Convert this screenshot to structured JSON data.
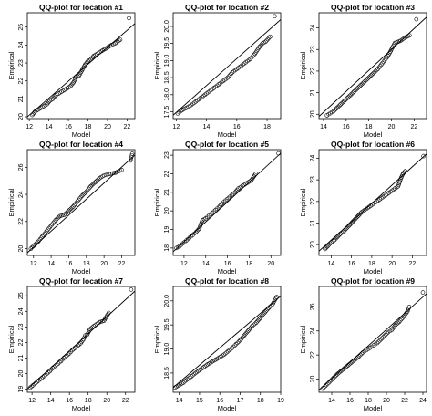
{
  "chart_data": [
    {
      "type": "scatter",
      "title": "QQ-plot for location #1",
      "xlabel": "Model",
      "ylabel": "Empirical",
      "xticks": [
        12,
        14,
        16,
        18,
        20,
        22
      ],
      "yticks": [
        20,
        21,
        22,
        23,
        24,
        25
      ],
      "xlim": [
        11.8,
        22.8
      ],
      "ylim": [
        19.9,
        25.8
      ],
      "reference_line": [
        [
          11.8,
          20.0
        ],
        [
          22.8,
          25.2
        ]
      ],
      "points": [
        [
          12.3,
          20.1
        ],
        [
          12.6,
          20.3
        ],
        [
          12.9,
          20.4
        ],
        [
          13.2,
          20.5
        ],
        [
          13.5,
          20.6
        ],
        [
          13.8,
          20.7
        ],
        [
          14.1,
          20.9
        ],
        [
          14.4,
          21.0
        ],
        [
          14.7,
          21.2
        ],
        [
          15.0,
          21.3
        ],
        [
          15.3,
          21.4
        ],
        [
          15.6,
          21.5
        ],
        [
          15.9,
          21.6
        ],
        [
          16.2,
          21.7
        ],
        [
          16.5,
          21.9
        ],
        [
          16.8,
          22.2
        ],
        [
          17.1,
          22.3
        ],
        [
          17.4,
          22.6
        ],
        [
          17.7,
          22.9
        ],
        [
          18.0,
          23.1
        ],
        [
          18.3,
          23.2
        ],
        [
          18.6,
          23.4
        ],
        [
          18.9,
          23.5
        ],
        [
          19.2,
          23.6
        ],
        [
          19.5,
          23.7
        ],
        [
          19.8,
          23.8
        ],
        [
          20.1,
          23.9
        ],
        [
          20.4,
          24.0
        ],
        [
          20.8,
          24.1
        ],
        [
          21.3,
          24.3
        ],
        [
          22.2,
          25.5
        ]
      ]
    },
    {
      "type": "scatter",
      "title": "QQ-plot for location #2",
      "xlabel": "Model",
      "ylabel": "Empirical",
      "xticks": [
        12,
        14,
        16,
        18
      ],
      "yticks": [
        17.5,
        18.0,
        18.5,
        19.0,
        19.5,
        20.0
      ],
      "xlim": [
        11.8,
        18.9
      ],
      "ylim": [
        17.3,
        20.4
      ],
      "reference_line": [
        [
          11.8,
          17.4
        ],
        [
          18.9,
          20.2
        ]
      ],
      "points": [
        [
          12.1,
          17.45
        ],
        [
          12.4,
          17.55
        ],
        [
          12.7,
          17.62
        ],
        [
          13.0,
          17.7
        ],
        [
          13.3,
          17.8
        ],
        [
          13.6,
          17.9
        ],
        [
          13.9,
          18.0
        ],
        [
          14.2,
          18.1
        ],
        [
          14.5,
          18.2
        ],
        [
          14.8,
          18.3
        ],
        [
          15.1,
          18.4
        ],
        [
          15.4,
          18.5
        ],
        [
          15.7,
          18.65
        ],
        [
          16.0,
          18.75
        ],
        [
          16.3,
          18.85
        ],
        [
          16.6,
          18.95
        ],
        [
          16.9,
          19.05
        ],
        [
          17.2,
          19.2
        ],
        [
          17.5,
          19.4
        ],
        [
          17.7,
          19.5
        ],
        [
          17.9,
          19.55
        ],
        [
          18.2,
          19.7
        ],
        [
          18.5,
          20.3
        ]
      ]
    },
    {
      "type": "scatter",
      "title": "QQ-plot for location #3",
      "xlabel": "Model",
      "ylabel": "Empirical",
      "xticks": [
        14,
        16,
        18,
        20,
        22
      ],
      "yticks": [
        20,
        21,
        22,
        23,
        24
      ],
      "xlim": [
        13.6,
        23.1
      ],
      "ylim": [
        19.8,
        24.7
      ],
      "reference_line": [
        [
          13.6,
          19.9
        ],
        [
          23.1,
          24.5
        ]
      ],
      "points": [
        [
          14.3,
          19.95
        ],
        [
          14.6,
          20.05
        ],
        [
          14.9,
          20.15
        ],
        [
          15.2,
          20.3
        ],
        [
          15.5,
          20.45
        ],
        [
          15.8,
          20.6
        ],
        [
          16.1,
          20.75
        ],
        [
          16.4,
          20.9
        ],
        [
          16.7,
          21.05
        ],
        [
          17.0,
          21.2
        ],
        [
          17.3,
          21.35
        ],
        [
          17.6,
          21.5
        ],
        [
          17.9,
          21.65
        ],
        [
          18.2,
          21.8
        ],
        [
          18.5,
          21.95
        ],
        [
          18.8,
          22.1
        ],
        [
          19.1,
          22.3
        ],
        [
          19.4,
          22.5
        ],
        [
          19.7,
          22.7
        ],
        [
          19.9,
          22.9
        ],
        [
          20.1,
          23.1
        ],
        [
          20.3,
          23.3
        ],
        [
          20.8,
          23.4
        ],
        [
          21.2,
          23.55
        ],
        [
          21.6,
          23.65
        ],
        [
          22.2,
          24.4
        ]
      ]
    },
    {
      "type": "scatter",
      "title": "QQ-plot for location #4",
      "xlabel": "Model",
      "ylabel": "Empirical",
      "xticks": [
        12,
        14,
        16,
        18,
        20,
        22
      ],
      "yticks": [
        20,
        22,
        24,
        26
      ],
      "xlim": [
        11.3,
        23.5
      ],
      "ylim": [
        19.5,
        27.3
      ],
      "reference_line": [
        [
          11.3,
          19.7
        ],
        [
          23.5,
          26.9
        ]
      ],
      "points": [
        [
          11.7,
          20.0
        ],
        [
          12.0,
          20.2
        ],
        [
          12.5,
          20.5
        ],
        [
          13.0,
          20.9
        ],
        [
          13.5,
          21.3
        ],
        [
          14.0,
          21.7
        ],
        [
          14.5,
          22.1
        ],
        [
          15.0,
          22.4
        ],
        [
          15.5,
          22.5
        ],
        [
          16.0,
          22.8
        ],
        [
          16.5,
          23.1
        ],
        [
          17.0,
          23.5
        ],
        [
          17.5,
          23.9
        ],
        [
          18.0,
          24.2
        ],
        [
          18.5,
          24.6
        ],
        [
          19.0,
          24.9
        ],
        [
          19.5,
          25.2
        ],
        [
          20.0,
          25.4
        ],
        [
          20.6,
          25.5
        ],
        [
          21.3,
          25.6
        ],
        [
          22.0,
          25.8
        ],
        [
          23.0,
          26.5
        ],
        [
          23.2,
          27.0
        ]
      ]
    },
    {
      "type": "scatter",
      "title": "QQ-plot for location #5",
      "xlabel": "Model",
      "ylabel": "Empirical",
      "xticks": [
        12,
        14,
        16,
        18,
        20
      ],
      "yticks": [
        18,
        19,
        20,
        21,
        22,
        23
      ],
      "xlim": [
        11.0,
        20.9
      ],
      "ylim": [
        17.6,
        23.3
      ],
      "reference_line": [
        [
          11.0,
          17.8
        ],
        [
          20.9,
          23.1
        ]
      ],
      "points": [
        [
          11.3,
          18.0
        ],
        [
          11.6,
          18.1
        ],
        [
          11.9,
          18.25
        ],
        [
          12.2,
          18.4
        ],
        [
          12.5,
          18.55
        ],
        [
          12.8,
          18.7
        ],
        [
          13.1,
          18.85
        ],
        [
          13.4,
          19.05
        ],
        [
          13.7,
          19.5
        ],
        [
          14.0,
          19.6
        ],
        [
          14.3,
          19.75
        ],
        [
          14.6,
          19.9
        ],
        [
          14.9,
          20.05
        ],
        [
          15.2,
          20.2
        ],
        [
          15.5,
          20.4
        ],
        [
          15.8,
          20.55
        ],
        [
          16.1,
          20.7
        ],
        [
          16.4,
          20.85
        ],
        [
          16.7,
          21.0
        ],
        [
          17.0,
          21.2
        ],
        [
          17.4,
          21.35
        ],
        [
          17.8,
          21.5
        ],
        [
          18.2,
          21.65
        ],
        [
          18.6,
          22.0
        ],
        [
          20.7,
          23.1
        ]
      ]
    },
    {
      "type": "scatter",
      "title": "QQ-plot for location #6",
      "xlabel": "Model",
      "ylabel": "Empirical",
      "xticks": [
        14,
        16,
        18,
        20,
        22
      ],
      "yticks": [
        20,
        21,
        22,
        23,
        24
      ],
      "xlim": [
        12.8,
        23.4
      ],
      "ylim": [
        19.5,
        24.4
      ],
      "reference_line": [
        [
          12.8,
          19.7
        ],
        [
          23.4,
          24.2
        ]
      ],
      "points": [
        [
          13.4,
          19.8
        ],
        [
          13.7,
          19.95
        ],
        [
          14.0,
          20.1
        ],
        [
          14.3,
          20.2
        ],
        [
          14.6,
          20.35
        ],
        [
          14.9,
          20.5
        ],
        [
          15.2,
          20.6
        ],
        [
          15.5,
          20.75
        ],
        [
          15.8,
          20.9
        ],
        [
          16.1,
          21.05
        ],
        [
          16.4,
          21.2
        ],
        [
          16.7,
          21.35
        ],
        [
          17.0,
          21.5
        ],
        [
          17.3,
          21.6
        ],
        [
          17.6,
          21.7
        ],
        [
          17.9,
          21.8
        ],
        [
          18.2,
          21.9
        ],
        [
          18.5,
          22.0
        ],
        [
          18.8,
          22.1
        ],
        [
          19.1,
          22.2
        ],
        [
          19.4,
          22.3
        ],
        [
          19.7,
          22.4
        ],
        [
          20.0,
          22.5
        ],
        [
          20.3,
          22.6
        ],
        [
          20.6,
          22.7
        ],
        [
          20.9,
          23.1
        ],
        [
          21.1,
          23.3
        ],
        [
          21.3,
          23.4
        ],
        [
          23.1,
          24.1
        ]
      ]
    },
    {
      "type": "scatter",
      "title": "QQ-plot for location #7",
      "xlabel": "Model",
      "ylabel": "Empirical",
      "xticks": [
        12,
        14,
        16,
        18,
        20,
        22
      ],
      "yticks": [
        19,
        20,
        21,
        22,
        23,
        24,
        25
      ],
      "xlim": [
        11.5,
        23.0
      ],
      "ylim": [
        18.8,
        25.6
      ],
      "reference_line": [
        [
          11.5,
          19.0
        ],
        [
          23.0,
          25.3
        ]
      ],
      "points": [
        [
          11.8,
          19.1
        ],
        [
          12.1,
          19.25
        ],
        [
          12.4,
          19.4
        ],
        [
          12.7,
          19.55
        ],
        [
          13.0,
          19.7
        ],
        [
          13.3,
          19.85
        ],
        [
          13.6,
          20.0
        ],
        [
          13.9,
          20.15
        ],
        [
          14.2,
          20.35
        ],
        [
          14.5,
          20.5
        ],
        [
          14.8,
          20.65
        ],
        [
          15.1,
          20.8
        ],
        [
          15.4,
          21.0
        ],
        [
          15.7,
          21.15
        ],
        [
          16.0,
          21.3
        ],
        [
          16.3,
          21.5
        ],
        [
          16.6,
          21.65
        ],
        [
          16.9,
          21.8
        ],
        [
          17.2,
          21.95
        ],
        [
          17.5,
          22.2
        ],
        [
          17.7,
          22.45
        ],
        [
          17.9,
          22.5
        ],
        [
          18.2,
          22.85
        ],
        [
          18.6,
          23.05
        ],
        [
          19.2,
          23.3
        ],
        [
          19.7,
          23.4
        ],
        [
          20.2,
          23.9
        ],
        [
          22.6,
          25.4
        ]
      ]
    },
    {
      "type": "scatter",
      "title": "QQ-plot for location #8",
      "xlabel": "Model",
      "ylabel": "Empirical",
      "xticks": [
        14,
        15,
        16,
        17,
        18,
        19
      ],
      "yticks": [
        18.5,
        19.0,
        19.5,
        20.0
      ],
      "xlim": [
        13.7,
        19.0
      ],
      "ylim": [
        18.1,
        20.3
      ],
      "reference_line": [
        [
          13.7,
          18.2
        ],
        [
          19.0,
          20.1
        ]
      ],
      "points": [
        [
          13.8,
          18.2
        ],
        [
          14.0,
          18.25
        ],
        [
          14.2,
          18.3
        ],
        [
          14.4,
          18.37
        ],
        [
          14.6,
          18.43
        ],
        [
          14.8,
          18.5
        ],
        [
          15.0,
          18.56
        ],
        [
          15.2,
          18.62
        ],
        [
          15.4,
          18.68
        ],
        [
          15.6,
          18.73
        ],
        [
          15.8,
          18.78
        ],
        [
          16.0,
          18.83
        ],
        [
          16.2,
          18.88
        ],
        [
          16.4,
          18.95
        ],
        [
          16.6,
          19.02
        ],
        [
          16.8,
          19.1
        ],
        [
          17.0,
          19.18
        ],
        [
          17.2,
          19.28
        ],
        [
          17.4,
          19.38
        ],
        [
          17.6,
          19.48
        ],
        [
          17.8,
          19.55
        ],
        [
          18.0,
          19.65
        ],
        [
          18.2,
          19.75
        ],
        [
          18.4,
          19.85
        ],
        [
          18.6,
          19.93
        ],
        [
          18.8,
          20.08
        ]
      ]
    },
    {
      "type": "scatter",
      "title": "QQ-plot for location #9",
      "xlabel": "Model",
      "ylabel": "Empirical",
      "xticks": [
        14,
        16,
        18,
        20,
        22,
        24
      ],
      "yticks": [
        20,
        22,
        24,
        26
      ],
      "xlim": [
        12.6,
        24.4
      ],
      "ylim": [
        18.9,
        27.7
      ],
      "reference_line": [
        [
          12.6,
          19.1
        ],
        [
          24.4,
          27.1
        ]
      ],
      "points": [
        [
          13.0,
          19.2
        ],
        [
          13.4,
          19.5
        ],
        [
          13.8,
          19.8
        ],
        [
          14.2,
          20.1
        ],
        [
          14.6,
          20.4
        ],
        [
          15.0,
          20.65
        ],
        [
          15.4,
          20.9
        ],
        [
          15.8,
          21.15
        ],
        [
          16.2,
          21.4
        ],
        [
          16.6,
          21.65
        ],
        [
          17.0,
          21.9
        ],
        [
          17.4,
          22.2
        ],
        [
          17.8,
          22.4
        ],
        [
          18.2,
          22.6
        ],
        [
          18.6,
          22.8
        ],
        [
          19.0,
          23.0
        ],
        [
          19.4,
          23.3
        ],
        [
          19.8,
          23.6
        ],
        [
          20.2,
          23.9
        ],
        [
          20.6,
          24.1
        ],
        [
          21.0,
          24.5
        ],
        [
          21.4,
          24.75
        ],
        [
          21.9,
          25.2
        ],
        [
          22.3,
          25.6
        ],
        [
          22.5,
          26.0
        ],
        [
          24.0,
          27.2
        ]
      ]
    }
  ]
}
